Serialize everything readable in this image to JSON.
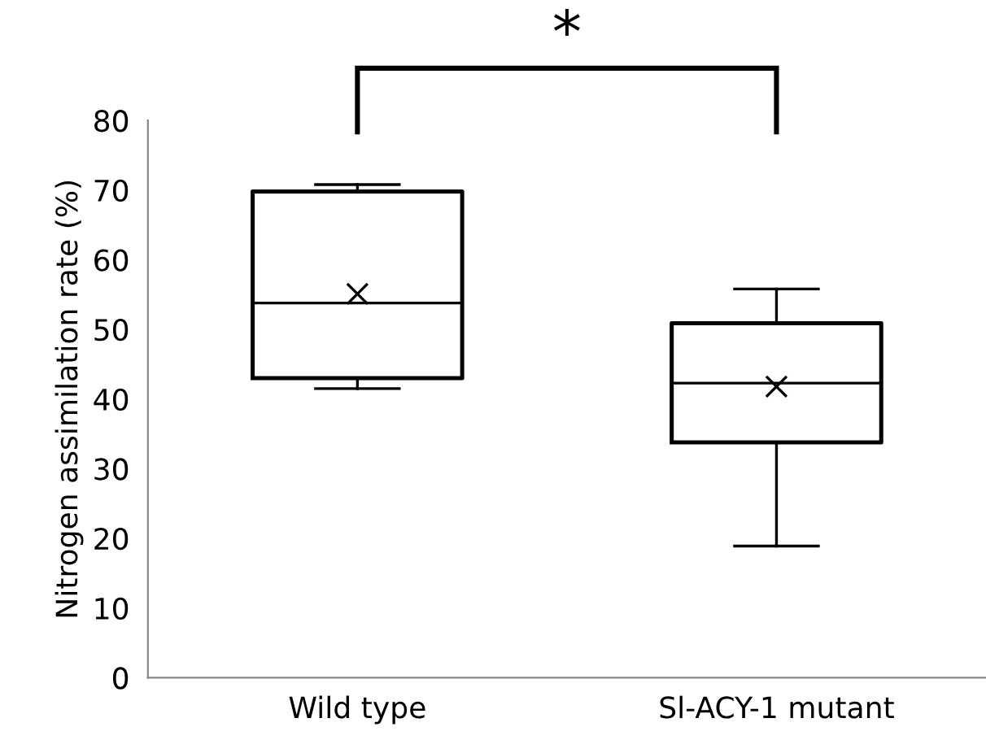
{
  "chart_data": {
    "type": "box",
    "ylabel": "Nitrogen assimilation rate (%)",
    "categories": [
      "Wild type",
      "Sl-ACY-1 mutant"
    ],
    "boxes": [
      {
        "low": 41.5,
        "q1": 43,
        "median": 53.8,
        "q3": 69.8,
        "high": 70.8,
        "mean": 55.1
      },
      {
        "low": 18.9,
        "q1": 33.8,
        "median": 42.3,
        "q3": 50.9,
        "high": 55.8,
        "mean": 41.8
      }
    ],
    "ylim": [
      0,
      80
    ],
    "yticks": [
      0,
      10,
      20,
      30,
      40,
      50,
      60,
      70,
      80
    ],
    "grid": false,
    "annotations": [
      "*"
    ]
  }
}
